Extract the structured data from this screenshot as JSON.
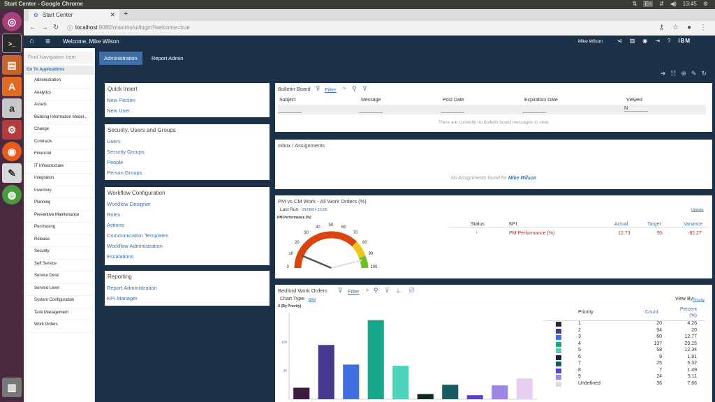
{
  "os": {
    "window_title": "Start Center - Google Chrome",
    "tray_lang": "En",
    "clock": "13:45"
  },
  "browser": {
    "tab_title": "Start Center",
    "url_host": "localhost",
    "url_rest": ":9080/maximo/ui/login?welcome=true"
  },
  "header": {
    "welcome": "Welcome, Mike Wilson",
    "user_name": "Mike Wilson",
    "brand": "IBM"
  },
  "nav": {
    "find_placeholder": "Find Navigation Item",
    "goto_label": "Go To Applications",
    "items": [
      "Administration",
      "Analytics",
      "Assets",
      "Building Information Model...",
      "Change",
      "Contracts",
      "Financial",
      "IT Infrastructure",
      "Integration",
      "Inventory",
      "Planning",
      "Preventive Maintenance",
      "Purchasing",
      "Release",
      "Security",
      "Self Service",
      "Service Desk",
      "Service Level",
      "System Configuration",
      "Task Management",
      "Work Orders"
    ]
  },
  "tabs": [
    "Administration",
    "Report Admin"
  ],
  "quick_insert": {
    "title": "Quick Insert",
    "links": [
      "New Person",
      "New User"
    ]
  },
  "security": {
    "title": "Security, Users and Groups",
    "links": [
      "Users",
      "Security Groups",
      "People",
      "Person Groups"
    ]
  },
  "workflow": {
    "title": "Workflow Configuration",
    "links": [
      "Workflow Designer",
      "Roles",
      "Actions",
      "Communication Templates",
      "Workflow Administration",
      "Escalations"
    ]
  },
  "reporting": {
    "title": "Reporting",
    "links": [
      "Report Administration",
      "KPI Manager"
    ]
  },
  "bulletin": {
    "title": "Bulletin Board",
    "filter": "Filter",
    "chevron": ">",
    "columns": [
      "Subject",
      "Message",
      "Post Date",
      "Expiration Date",
      "Viewed"
    ],
    "viewed_filter": "N",
    "empty": "There are currently no bulletin board messages to view."
  },
  "inbox": {
    "title": "Inbox / Assignments",
    "empty_prefix": "No Assignments found for ",
    "empty_user": "Mike Wilson"
  },
  "kpi": {
    "title": "PM vs CM Work - All Work Orders (%)",
    "last_run_label": "Last Run:",
    "last_run": "03/08/04 15:05",
    "update": "Update",
    "gauge_title": "PM Performance (%)",
    "gauge_ticks": [
      "0",
      "10",
      "20",
      "30",
      "40",
      "50",
      "60",
      "70",
      "80",
      "90",
      "100"
    ],
    "gauge_value": 12.73,
    "columns": [
      "Status",
      "KPI",
      "Actual",
      "Target",
      "Variance"
    ],
    "row": {
      "status_icon": "arrow-down-icon",
      "kpi": "PM Performance (%)",
      "actual": "12.73",
      "target": "95",
      "variance": "-82.27"
    }
  },
  "workorders": {
    "title": "Bedford Work Orders",
    "filter": "Filter",
    "chart_type_label": "Chart Type:",
    "chart_type": "BAR",
    "view_by_label": "View By:",
    "view_by": "Priority",
    "x_label": "X (By Priority)",
    "col_priority": "Priority",
    "col_count": "Count",
    "col_percent": "Percent (%)"
  },
  "colors": {
    "nav_dark": "#1c3248",
    "tab_active": "#3f6fa6",
    "link": "#3a6fb0",
    "kpi_red": "#c0282d"
  },
  "chart_data": {
    "type": "bar",
    "categories": [
      "1",
      "2",
      "3",
      "4",
      "5",
      "6",
      "7",
      "8",
      "9",
      "Undefined"
    ],
    "values": [
      20,
      94,
      60,
      137,
      58,
      9,
      25,
      7,
      24,
      36
    ],
    "percent": [
      "4.26",
      "20",
      "12.77",
      "29.15",
      "12.34",
      "1.91",
      "5.32",
      "1.49",
      "5.11",
      "7.66"
    ],
    "colors": [
      "#3b1c3f",
      "#45388f",
      "#3f6fe0",
      "#17a88c",
      "#4dd4bb",
      "#12291e",
      "#175c5e",
      "#5a3fd8",
      "#9d85e8",
      "#e7d0f0"
    ],
    "y_ticks": [
      "50",
      "100"
    ],
    "ylim": [
      0,
      150
    ],
    "xlabel": "X (By Priority)",
    "grid": false
  }
}
